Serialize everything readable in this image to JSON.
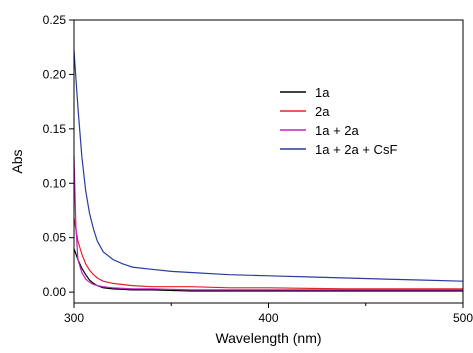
{
  "chart_data": {
    "type": "line",
    "xlabel": "Wavelength (nm)",
    "ylabel": "Abs",
    "xlim": [
      300,
      500
    ],
    "ylim": [
      -0.01,
      0.25
    ],
    "x_ticks": [
      300,
      400,
      500
    ],
    "y_ticks": [
      0.0,
      0.05,
      0.1,
      0.15,
      0.2,
      0.25
    ],
    "y_tick_labels": [
      "0.00",
      "0.05",
      "0.10",
      "0.15",
      "0.20",
      "0.25"
    ],
    "x_tick_labels": [
      "300",
      "400",
      "500"
    ],
    "legend_position": "top-right",
    "series": [
      {
        "name": "1a",
        "color": "#000000",
        "x": [
          300,
          302,
          304,
          306,
          308,
          310,
          312,
          315,
          320,
          330,
          340,
          360,
          380,
          400,
          440,
          480,
          500
        ],
        "y": [
          0.04,
          0.03,
          0.022,
          0.016,
          0.011,
          0.008,
          0.006,
          0.004,
          0.003,
          0.002,
          0.002,
          0.001,
          0.001,
          0.001,
          0.001,
          0.001,
          0.001
        ]
      },
      {
        "name": "2a",
        "color": "#e8202a",
        "x": [
          300,
          302,
          304,
          306,
          308,
          310,
          312,
          315,
          320,
          330,
          340,
          360,
          380,
          400,
          440,
          480,
          500
        ],
        "y": [
          0.068,
          0.047,
          0.035,
          0.026,
          0.02,
          0.016,
          0.013,
          0.01,
          0.008,
          0.006,
          0.005,
          0.005,
          0.004,
          0.004,
          0.003,
          0.003,
          0.003
        ]
      },
      {
        "name": "1a + 2a",
        "color": "#c020c0",
        "x": [
          300,
          301,
          302,
          304,
          306,
          308,
          310,
          312,
          315,
          320,
          330,
          340,
          360,
          380,
          400,
          440,
          480,
          500
        ],
        "y": [
          0.125,
          0.06,
          0.03,
          0.018,
          0.012,
          0.009,
          0.007,
          0.006,
          0.005,
          0.004,
          0.003,
          0.003,
          0.002,
          0.002,
          0.002,
          0.002,
          0.002,
          0.002
        ]
      },
      {
        "name": "1a + 2a + CsF",
        "color": "#2a3ca0",
        "x": [
          300,
          302,
          304,
          306,
          308,
          310,
          312,
          315,
          320,
          325,
          330,
          340,
          350,
          360,
          380,
          400,
          420,
          440,
          460,
          480,
          500
        ],
        "y": [
          0.222,
          0.17,
          0.125,
          0.093,
          0.072,
          0.058,
          0.047,
          0.037,
          0.03,
          0.026,
          0.023,
          0.021,
          0.019,
          0.018,
          0.016,
          0.015,
          0.014,
          0.013,
          0.012,
          0.011,
          0.01
        ]
      }
    ]
  }
}
